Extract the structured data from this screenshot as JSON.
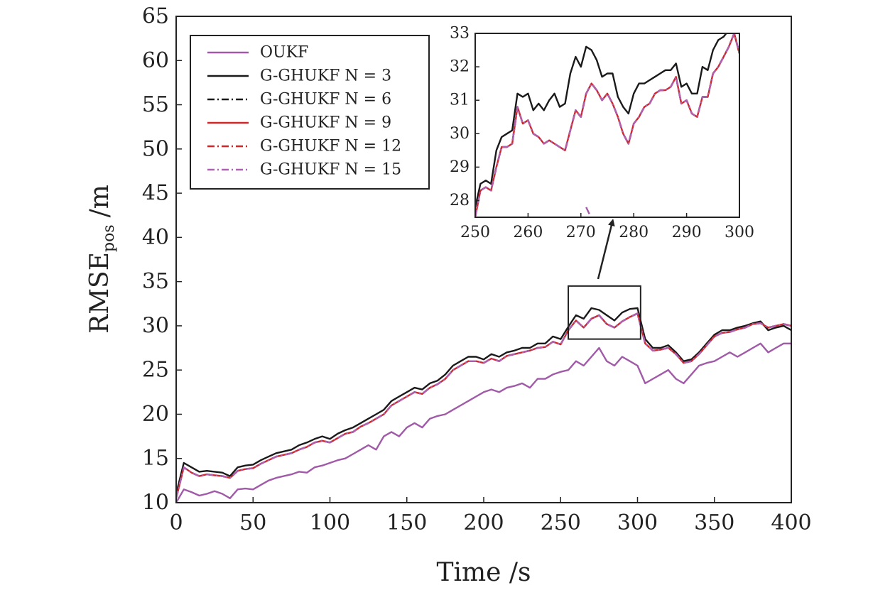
{
  "chart_data": [
    {
      "type": "line",
      "xlabel": "Time /s",
      "ylabel_main": "RMSE",
      "ylabel_sub": "pos",
      "ylabel_unit": "/m",
      "xlim": [
        0,
        400
      ],
      "ylim": [
        10,
        65
      ],
      "xticks": [
        "0",
        "50",
        "100",
        "150",
        "200",
        "250",
        "300",
        "350",
        "400"
      ],
      "yticks": [
        "10",
        "15",
        "20",
        "25",
        "30",
        "35",
        "40",
        "45",
        "50",
        "55",
        "60",
        "65"
      ],
      "grid": false,
      "legend_position": "top-left",
      "legend": [
        {
          "label": "OUKF",
          "color": "#a05aa8",
          "dash": "solid"
        },
        {
          "label": "G-GHUKF N = 3",
          "color": "#1a1a1a",
          "dash": "solid"
        },
        {
          "label": "G-GHUKF N = 6",
          "color": "#1a1a1a",
          "dash": "dashdot"
        },
        {
          "label": "G-GHUKF N = 9",
          "color": "#d02828",
          "dash": "solid"
        },
        {
          "label": "G-GHUKF N = 12",
          "color": "#d02828",
          "dash": "dashdot"
        },
        {
          "label": "G-GHUKF N = 15",
          "color": "#b060b0",
          "dash": "dashdot"
        }
      ],
      "x": [
        0,
        5,
        10,
        15,
        20,
        25,
        30,
        35,
        40,
        45,
        50,
        55,
        60,
        65,
        70,
        75,
        80,
        85,
        90,
        95,
        100,
        105,
        110,
        115,
        120,
        125,
        130,
        135,
        140,
        145,
        150,
        155,
        160,
        165,
        170,
        175,
        180,
        185,
        190,
        195,
        200,
        205,
        210,
        215,
        220,
        225,
        230,
        235,
        240,
        245,
        250,
        255,
        260,
        265,
        270,
        275,
        280,
        285,
        290,
        295,
        300,
        305,
        310,
        315,
        320,
        325,
        330,
        335,
        340,
        345,
        350,
        355,
        360,
        365,
        370,
        375,
        380,
        385,
        390,
        395,
        400
      ],
      "series": [
        {
          "name": "OUKF",
          "color": "#a05aa8",
          "values": [
            10.0,
            11.5,
            11.2,
            10.8,
            11.0,
            11.3,
            11.0,
            10.5,
            11.5,
            11.6,
            11.5,
            12.0,
            12.5,
            12.8,
            13.0,
            13.2,
            13.5,
            13.4,
            14.0,
            14.2,
            14.5,
            14.8,
            15.0,
            15.5,
            16.0,
            16.5,
            16.0,
            17.5,
            18.0,
            17.5,
            18.5,
            19.0,
            18.5,
            19.5,
            19.8,
            20.0,
            20.5,
            21.0,
            21.5,
            22.0,
            22.5,
            22.8,
            22.5,
            23.0,
            23.2,
            23.5,
            23.0,
            24.0,
            24.0,
            24.5,
            24.8,
            25.0,
            26.0,
            25.5,
            26.5,
            27.5,
            26.0,
            25.5,
            26.5,
            26.0,
            25.5,
            23.5,
            24.0,
            24.5,
            25.0,
            24.0,
            23.5,
            24.5,
            25.5,
            25.8,
            26.0,
            26.5,
            27.0,
            26.5,
            27.0,
            27.5,
            28.0,
            27.0,
            27.5,
            28.0,
            28.0
          ]
        },
        {
          "name": "G-GHUKF N = 3",
          "color": "#1a1a1a",
          "values": [
            11.0,
            14.5,
            14.0,
            13.5,
            13.6,
            13.5,
            13.4,
            13.0,
            14.0,
            14.2,
            14.3,
            14.8,
            15.2,
            15.6,
            15.8,
            16.0,
            16.5,
            16.8,
            17.2,
            17.5,
            17.2,
            17.8,
            18.2,
            18.5,
            19.0,
            19.5,
            20.0,
            20.5,
            21.5,
            22.0,
            22.5,
            23.0,
            22.8,
            23.5,
            23.8,
            24.5,
            25.5,
            26.0,
            26.5,
            26.5,
            26.2,
            26.8,
            26.5,
            27.0,
            27.2,
            27.5,
            27.5,
            28.0,
            28.0,
            28.8,
            28.5,
            29.9,
            31.2,
            30.8,
            32.0,
            31.8,
            31.2,
            30.6,
            31.5,
            31.9,
            32.0,
            28.5,
            27.5,
            27.5,
            27.8,
            27.0,
            26.0,
            26.2,
            27.0,
            28.0,
            29.0,
            29.5,
            29.5,
            29.8,
            30.0,
            30.3,
            30.5,
            29.5,
            29.8,
            30.0,
            29.5
          ]
        },
        {
          "name": "G-GHUKF N = 6",
          "color": "#1a1a1a",
          "dash": "dashdot",
          "values": [
            10.5,
            14.0,
            13.4,
            13.0,
            13.2,
            13.1,
            13.0,
            12.8,
            13.6,
            13.8,
            13.9,
            14.4,
            14.8,
            15.2,
            15.4,
            15.6,
            16.0,
            16.3,
            16.8,
            17.0,
            16.8,
            17.3,
            17.8,
            18.0,
            18.6,
            19.0,
            19.5,
            20.0,
            21.0,
            21.5,
            22.0,
            22.5,
            22.3,
            23.0,
            23.4,
            24.0,
            25.0,
            25.5,
            26.0,
            26.0,
            25.8,
            26.3,
            26.0,
            26.6,
            26.8,
            27.0,
            27.2,
            27.5,
            27.6,
            28.2,
            27.9,
            29.5,
            30.6,
            29.8,
            30.8,
            31.2,
            30.2,
            29.8,
            30.5,
            31.0,
            31.4,
            28.0,
            27.2,
            27.3,
            27.5,
            26.8,
            25.8,
            26.0,
            26.8,
            27.8,
            28.8,
            29.2,
            29.3,
            29.6,
            29.8,
            30.2,
            30.3,
            29.8,
            30.0,
            30.2,
            30.0
          ]
        },
        {
          "name": "G-GHUKF N = 9",
          "color": "#d02828",
          "values": [
            10.5,
            14.0,
            13.4,
            13.0,
            13.2,
            13.1,
            13.0,
            12.8,
            13.6,
            13.8,
            13.9,
            14.4,
            14.8,
            15.2,
            15.4,
            15.6,
            16.0,
            16.3,
            16.8,
            17.0,
            16.8,
            17.3,
            17.8,
            18.0,
            18.6,
            19.0,
            19.5,
            20.0,
            21.0,
            21.5,
            22.0,
            22.5,
            22.3,
            23.0,
            23.4,
            24.0,
            25.0,
            25.5,
            26.0,
            26.0,
            25.8,
            26.3,
            26.0,
            26.6,
            26.8,
            27.0,
            27.2,
            27.5,
            27.6,
            28.2,
            27.9,
            29.5,
            30.6,
            29.8,
            30.8,
            31.2,
            30.2,
            29.8,
            30.5,
            31.0,
            31.4,
            28.0,
            27.2,
            27.3,
            27.5,
            26.8,
            25.8,
            26.0,
            26.8,
            27.8,
            28.8,
            29.2,
            29.3,
            29.6,
            29.8,
            30.2,
            30.3,
            29.8,
            30.0,
            30.2,
            30.0
          ]
        },
        {
          "name": "G-GHUKF N = 12",
          "color": "#d02828",
          "dash": "dashdot",
          "values": [
            10.5,
            14.0,
            13.4,
            13.0,
            13.2,
            13.1,
            13.0,
            12.8,
            13.6,
            13.8,
            13.9,
            14.4,
            14.8,
            15.2,
            15.4,
            15.6,
            16.0,
            16.3,
            16.8,
            17.0,
            16.8,
            17.3,
            17.8,
            18.0,
            18.6,
            19.0,
            19.5,
            20.0,
            21.0,
            21.5,
            22.0,
            22.5,
            22.3,
            23.0,
            23.4,
            24.0,
            25.0,
            25.5,
            26.0,
            26.0,
            25.8,
            26.3,
            26.0,
            26.6,
            26.8,
            27.0,
            27.2,
            27.5,
            27.6,
            28.2,
            27.9,
            29.5,
            30.6,
            29.8,
            30.8,
            31.2,
            30.2,
            29.8,
            30.5,
            31.0,
            31.4,
            28.0,
            27.2,
            27.3,
            27.5,
            26.8,
            25.8,
            26.0,
            26.8,
            27.8,
            28.8,
            29.2,
            29.3,
            29.6,
            29.8,
            30.2,
            30.3,
            29.8,
            30.0,
            30.2,
            30.0
          ]
        },
        {
          "name": "G-GHUKF N = 15",
          "color": "#b060b0",
          "dash": "dashdot",
          "values": [
            10.5,
            14.0,
            13.4,
            13.0,
            13.2,
            13.1,
            13.0,
            12.8,
            13.6,
            13.8,
            13.9,
            14.4,
            14.8,
            15.2,
            15.4,
            15.6,
            16.0,
            16.3,
            16.8,
            17.0,
            16.8,
            17.3,
            17.8,
            18.0,
            18.6,
            19.0,
            19.5,
            20.0,
            21.0,
            21.5,
            22.0,
            22.5,
            22.3,
            23.0,
            23.4,
            24.0,
            25.0,
            25.5,
            26.0,
            26.0,
            25.8,
            26.3,
            26.0,
            26.6,
            26.8,
            27.0,
            27.2,
            27.5,
            27.6,
            28.2,
            27.9,
            29.5,
            30.6,
            29.8,
            30.8,
            31.2,
            30.2,
            29.8,
            30.5,
            31.0,
            31.4,
            28.0,
            27.2,
            27.3,
            27.5,
            26.8,
            25.8,
            26.0,
            26.8,
            27.8,
            28.8,
            29.2,
            29.3,
            29.6,
            29.8,
            30.2,
            30.3,
            29.8,
            30.0,
            30.2,
            30.0
          ]
        }
      ]
    },
    {
      "type": "line",
      "role": "inset",
      "xlim": [
        250,
        300
      ],
      "ylim": [
        27.5,
        33
      ],
      "xticks": [
        "250",
        "260",
        "270",
        "280",
        "290",
        "300"
      ],
      "yticks": [
        "28",
        "29",
        "30",
        "31",
        "32",
        "33"
      ],
      "zoom_region": {
        "x": [
          255,
          302
        ],
        "y": [
          28.5,
          34.5
        ]
      },
      "x": [
        250,
        251,
        252,
        253,
        254,
        255,
        256,
        257,
        258,
        259,
        260,
        261,
        262,
        263,
        264,
        265,
        266,
        267,
        268,
        269,
        270,
        271,
        272,
        273,
        274,
        275,
        276,
        277,
        278,
        279,
        280,
        281,
        282,
        283,
        284,
        285,
        286,
        287,
        288,
        289,
        290,
        291,
        292,
        293,
        294,
        295,
        296,
        297,
        298,
        299,
        300
      ],
      "series": [
        {
          "name": "OUKF",
          "color": "#a05aa8",
          "x": [
            271,
            271.6
          ],
          "values": [
            27.8,
            27.6
          ]
        },
        {
          "name": "G-GHUKF N = 3",
          "color": "#1a1a1a",
          "values": [
            27.8,
            28.5,
            28.6,
            28.5,
            29.5,
            29.9,
            30.0,
            30.1,
            31.2,
            31.1,
            31.2,
            30.7,
            30.9,
            30.7,
            31.0,
            31.2,
            30.8,
            30.9,
            31.8,
            32.3,
            32.0,
            32.6,
            32.5,
            32.2,
            31.7,
            31.8,
            31.8,
            31.1,
            30.8,
            30.6,
            31.2,
            31.5,
            31.5,
            31.6,
            31.7,
            31.8,
            31.9,
            31.9,
            32.1,
            31.4,
            31.5,
            31.2,
            31.2,
            32.0,
            31.9,
            32.5,
            32.8,
            32.9,
            33.1,
            33.0,
            32.4
          ]
        },
        {
          "name": "G-GHUKF N = 6",
          "color": "#1a1a1a",
          "dash": "dashdot",
          "values": [
            27.5,
            28.3,
            28.4,
            28.3,
            29.0,
            29.6,
            29.6,
            29.7,
            30.8,
            30.3,
            30.4,
            30.0,
            29.9,
            29.7,
            29.8,
            29.7,
            29.6,
            29.5,
            30.1,
            30.7,
            30.5,
            31.2,
            31.5,
            31.3,
            31.0,
            31.2,
            30.9,
            30.5,
            30.0,
            29.7,
            30.3,
            30.5,
            30.8,
            30.9,
            31.2,
            31.3,
            31.3,
            31.4,
            31.7,
            30.9,
            31.0,
            30.6,
            30.5,
            31.1,
            31.1,
            31.8,
            32.0,
            32.3,
            32.6,
            33.0,
            32.4
          ]
        },
        {
          "name": "G-GHUKF N = 9",
          "color": "#d02828",
          "values": [
            27.5,
            28.3,
            28.4,
            28.3,
            29.0,
            29.6,
            29.6,
            29.7,
            30.8,
            30.3,
            30.4,
            30.0,
            29.9,
            29.7,
            29.8,
            29.7,
            29.6,
            29.5,
            30.1,
            30.7,
            30.5,
            31.2,
            31.5,
            31.3,
            31.0,
            31.2,
            30.9,
            30.5,
            30.0,
            29.7,
            30.3,
            30.5,
            30.8,
            30.9,
            31.2,
            31.3,
            31.3,
            31.4,
            31.7,
            30.9,
            31.0,
            30.6,
            30.5,
            31.1,
            31.1,
            31.8,
            32.0,
            32.3,
            32.6,
            33.0,
            32.4
          ]
        },
        {
          "name": "G-GHUKF N = 12",
          "color": "#d02828",
          "dash": "dashdot",
          "values": [
            27.5,
            28.3,
            28.4,
            28.3,
            29.0,
            29.6,
            29.6,
            29.7,
            30.8,
            30.3,
            30.4,
            30.0,
            29.9,
            29.7,
            29.8,
            29.7,
            29.6,
            29.5,
            30.1,
            30.7,
            30.5,
            31.2,
            31.5,
            31.3,
            31.0,
            31.2,
            30.9,
            30.5,
            30.0,
            29.7,
            30.3,
            30.5,
            30.8,
            30.9,
            31.2,
            31.3,
            31.3,
            31.4,
            31.7,
            30.9,
            31.0,
            30.6,
            30.5,
            31.1,
            31.1,
            31.8,
            32.0,
            32.3,
            32.6,
            33.0,
            32.4
          ]
        },
        {
          "name": "G-GHUKF N = 15",
          "color": "#b060b0",
          "dash": "dashdot",
          "values": [
            27.5,
            28.3,
            28.4,
            28.3,
            29.0,
            29.6,
            29.6,
            29.7,
            30.8,
            30.3,
            30.4,
            30.0,
            29.9,
            29.7,
            29.8,
            29.7,
            29.6,
            29.5,
            30.1,
            30.7,
            30.5,
            31.2,
            31.5,
            31.3,
            31.0,
            31.2,
            30.9,
            30.5,
            30.0,
            29.7,
            30.3,
            30.5,
            30.8,
            30.9,
            31.2,
            31.3,
            31.3,
            31.4,
            31.7,
            30.9,
            31.0,
            30.6,
            30.5,
            31.1,
            31.1,
            31.8,
            32.0,
            32.3,
            32.6,
            33.0,
            32.4
          ]
        }
      ]
    }
  ]
}
